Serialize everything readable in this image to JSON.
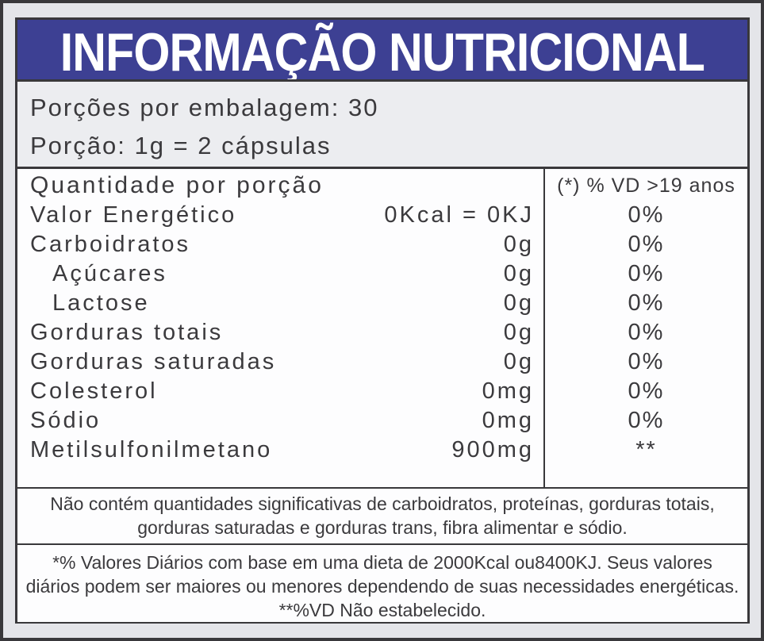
{
  "title": "INFORMAÇÃO NUTRICIONAL",
  "servings": {
    "line1": "Porções por embalagem: 30",
    "line2": "Porção: 1g = 2 cápsulas"
  },
  "table": {
    "header_left": "Quantidade por porção",
    "header_right": "(*) % VD >19 anos",
    "rows": [
      {
        "name": "Valor Energético",
        "amount": "0Kcal = 0KJ",
        "vd": "0%",
        "indent": false
      },
      {
        "name": "Carboidratos",
        "amount": "0g",
        "vd": "0%",
        "indent": false
      },
      {
        "name": "Açúcares",
        "amount": "0g",
        "vd": "0%",
        "indent": true
      },
      {
        "name": "Lactose",
        "amount": "0g",
        "vd": "0%",
        "indent": true
      },
      {
        "name": "Gorduras totais",
        "amount": "0g",
        "vd": "0%",
        "indent": false
      },
      {
        "name": "Gorduras saturadas",
        "amount": "0g",
        "vd": "0%",
        "indent": false
      },
      {
        "name": "Colesterol",
        "amount": "0mg",
        "vd": "0%",
        "indent": false
      },
      {
        "name": "Sódio",
        "amount": "0mg",
        "vd": "0%",
        "indent": false
      },
      {
        "name": "Metilsulfonilmetano",
        "amount": "900mg",
        "vd": "**",
        "indent": false
      }
    ]
  },
  "footnotes": {
    "significant": "Não contém quantidades significativas de carboidratos, proteínas, gorduras totais, gorduras saturadas e gorduras trans, fibra alimentar e sódio.",
    "daily_values": "*% Valores Diários com base em uma dieta de 2000Kcal ou8400KJ. Seus valores diários podem ser maiores ou menores dependendo de suas necessidades energéticas.",
    "not_established": "**%VD Não estabelecido."
  },
  "colors": {
    "header_bg": "#3d4093",
    "border": "#39383b",
    "page_bg": "#e4e5e9",
    "servings_bg": "#ecedf0",
    "table_bg": "#fdfdfe",
    "text": "#3b3a3d",
    "title_text": "#ffffff"
  }
}
